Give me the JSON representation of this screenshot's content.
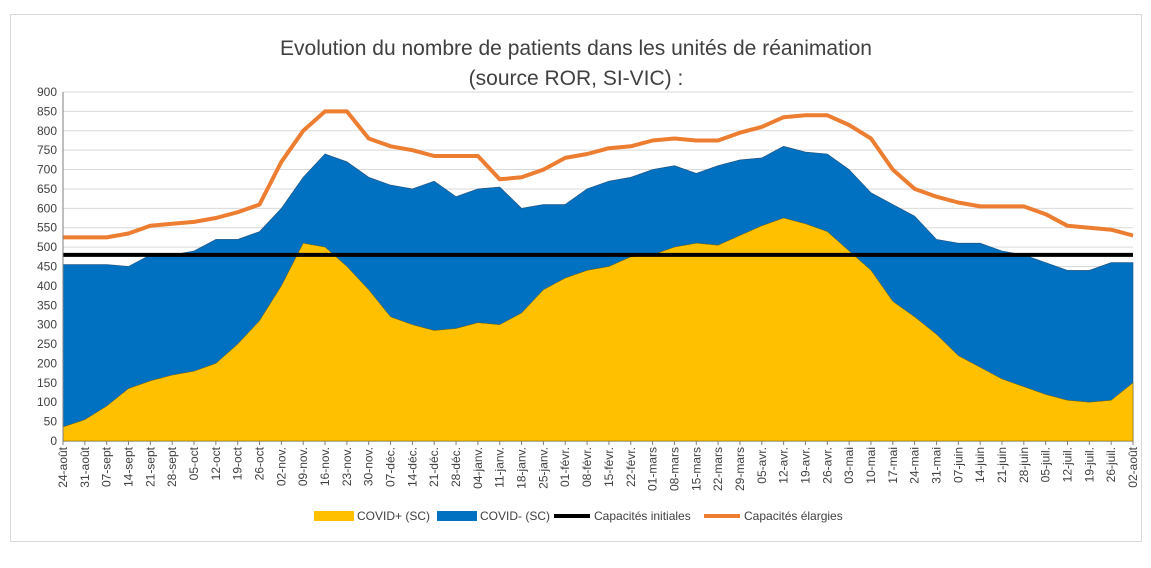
{
  "chart_data": {
    "type": "area",
    "title": [
      "Evolution du nombre de patients dans les unités de réanimation",
      "(source ROR, SI-VIC) :"
    ],
    "xlabel": "",
    "ylabel": "",
    "ylim": [
      0,
      900
    ],
    "yticks": [
      0,
      50,
      100,
      150,
      200,
      250,
      300,
      350,
      400,
      450,
      500,
      550,
      600,
      650,
      700,
      750,
      800,
      850,
      900
    ],
    "grid": true,
    "legend_position": "bottom",
    "x_labels": [
      "24-août",
      "31-août",
      "07-sept",
      "14-sept",
      "21-sept",
      "28-sept",
      "05-oct",
      "12-oct",
      "19-oct",
      "26-oct",
      "02-nov.",
      "09-nov.",
      "16-nov.",
      "23-nov.",
      "30-nov.",
      "07-déc.",
      "14-déc.",
      "21-déc.",
      "28-déc.",
      "04-janv.",
      "11-janv.",
      "18-janv.",
      "25-janv.",
      "01-févr.",
      "08-févr.",
      "15-févr.",
      "22-févr.",
      "01-mars",
      "08-mars",
      "15-mars",
      "22-mars",
      "29-mars",
      "05-avr.",
      "12-avr.",
      "19-avr.",
      "26-avr.",
      "03-mai",
      "10-mai",
      "17-mai",
      "24-mai",
      "31-mai",
      "07-juin",
      "14-juin",
      "21-juin",
      "28-juin",
      "05-juil.",
      "12-juil.",
      "19-juil.",
      "26-juil.",
      "02-août"
    ],
    "series": [
      {
        "name": "COVID+ (SC)",
        "kind": "stacked-area",
        "color": "#FFC000",
        "values": [
          36,
          55,
          90,
          135,
          155,
          170,
          180,
          200,
          250,
          310,
          400,
          510,
          500,
          450,
          390,
          320,
          300,
          285,
          290,
          305,
          300,
          330,
          390,
          420,
          440,
          450,
          475,
          480,
          500,
          510,
          505,
          530,
          555,
          575,
          560,
          540,
          490,
          440,
          360,
          320,
          275,
          220,
          190,
          160,
          140,
          120,
          105,
          100,
          105,
          150
        ]
      },
      {
        "name": "COVID- (SC)",
        "kind": "stacked-area",
        "color": "#0070C0",
        "values": [
          455,
          455,
          455,
          450,
          480,
          480,
          490,
          520,
          520,
          540,
          600,
          680,
          740,
          720,
          680,
          660,
          650,
          670,
          630,
          650,
          655,
          600,
          610,
          610,
          650,
          670,
          680,
          700,
          710,
          690,
          710,
          725,
          730,
          760,
          745,
          740,
          700,
          640,
          610,
          580,
          520,
          510,
          510,
          490,
          480,
          460,
          440,
          440,
          460,
          460
        ]
      },
      {
        "name": "Capacités initiales",
        "kind": "line",
        "color": "#000000",
        "values": [
          480,
          480,
          480,
          480,
          480,
          480,
          480,
          480,
          480,
          480,
          480,
          480,
          480,
          480,
          480,
          480,
          480,
          480,
          480,
          480,
          480,
          480,
          480,
          480,
          480,
          480,
          480,
          480,
          480,
          480,
          480,
          480,
          480,
          480,
          480,
          480,
          480,
          480,
          480,
          480,
          480,
          480,
          480,
          480,
          480,
          480,
          480,
          480,
          480,
          480
        ]
      },
      {
        "name": "Capacités élargies",
        "kind": "line",
        "color": "#ED7D31",
        "values": [
          525,
          525,
          525,
          535,
          555,
          560,
          565,
          575,
          590,
          610,
          720,
          800,
          850,
          850,
          780,
          760,
          750,
          735,
          735,
          735,
          675,
          680,
          700,
          730,
          740,
          755,
          760,
          775,
          780,
          775,
          775,
          795,
          810,
          835,
          840,
          840,
          815,
          780,
          700,
          650,
          630,
          615,
          605,
          605,
          605,
          585,
          555,
          550,
          545,
          530
        ]
      }
    ]
  }
}
